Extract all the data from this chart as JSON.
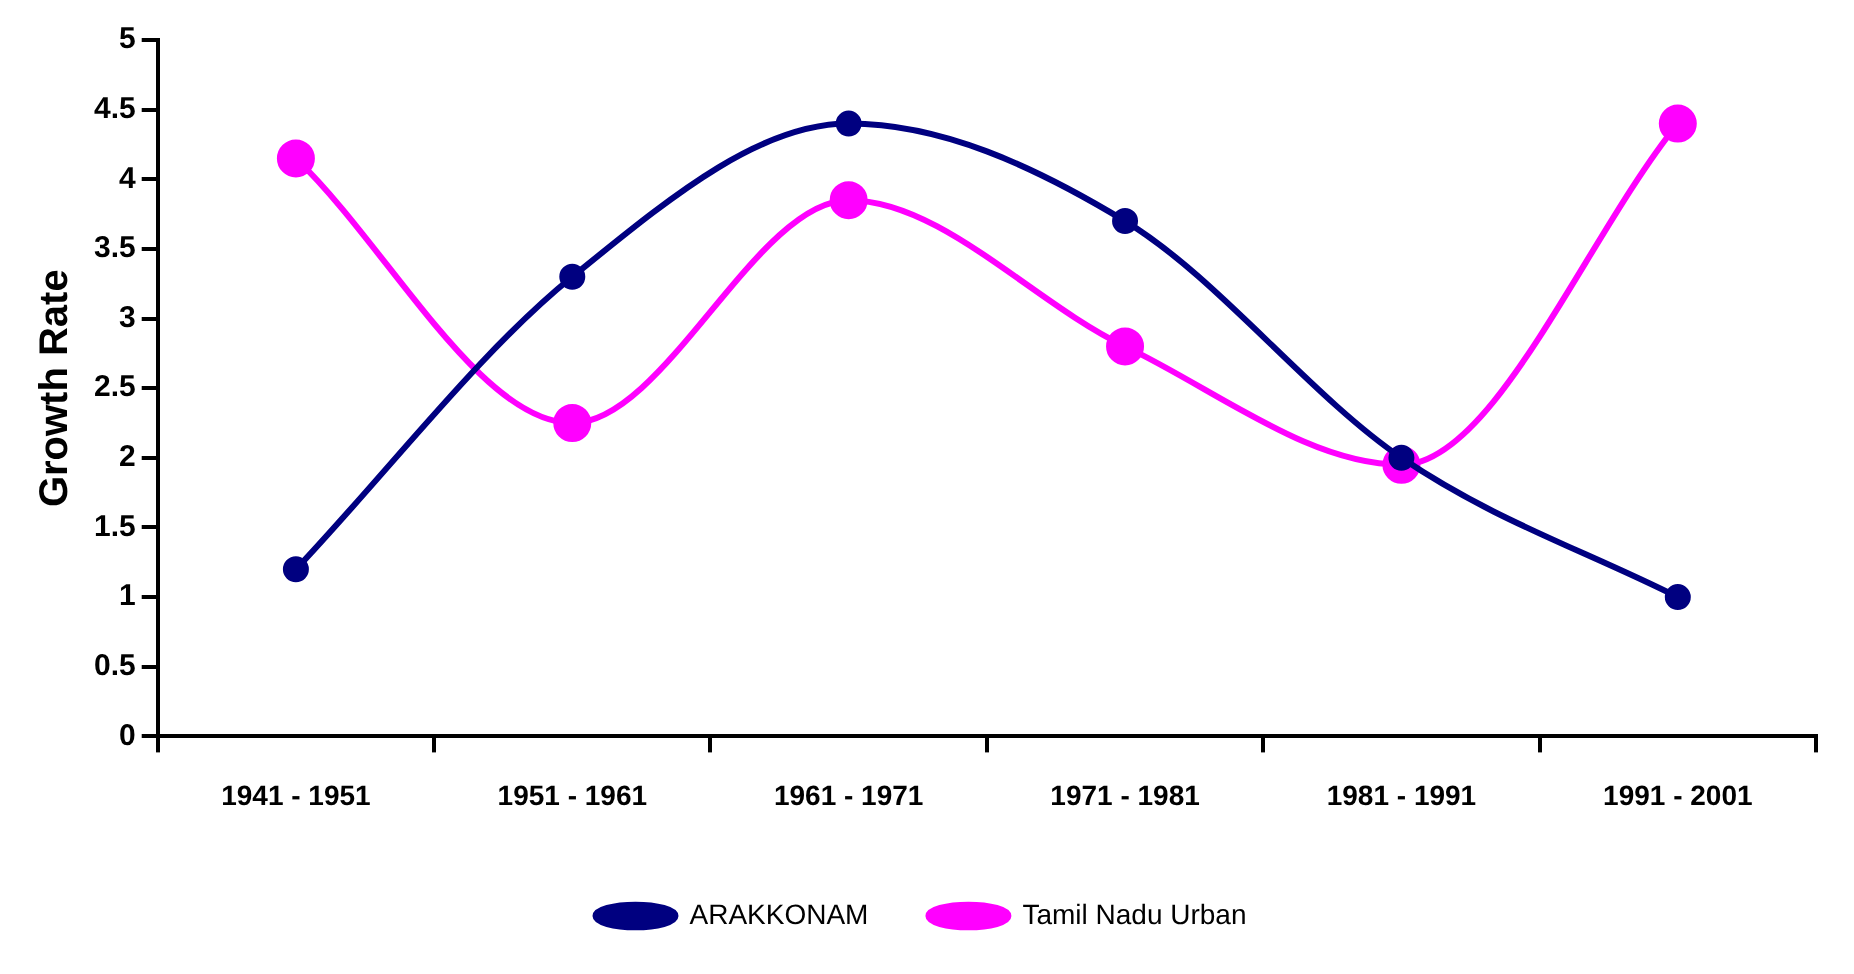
{
  "chart_data": {
    "type": "line",
    "ylabel": "Growth Rate",
    "categories": [
      "1941 - 1951",
      "1951 - 1961",
      "1961 - 1971",
      "1971 - 1981",
      "1981 - 1991",
      "1991 - 2001"
    ],
    "series": [
      {
        "name": "ARAKKONAM",
        "color": "#000080",
        "values": [
          1.2,
          3.3,
          4.4,
          3.7,
          2.0,
          1.0
        ]
      },
      {
        "name": "Tamil Nadu Urban",
        "color": "#ff00ff",
        "values": [
          4.15,
          2.25,
          3.85,
          2.8,
          1.95,
          4.4
        ]
      }
    ],
    "ylim": [
      0,
      5
    ],
    "yticks": [
      0,
      0.5,
      1,
      1.5,
      2,
      2.5,
      3,
      3.5,
      4,
      4.5,
      5
    ],
    "grid": false,
    "legend": "bottom",
    "marker": "circle",
    "line_style": "solid"
  }
}
